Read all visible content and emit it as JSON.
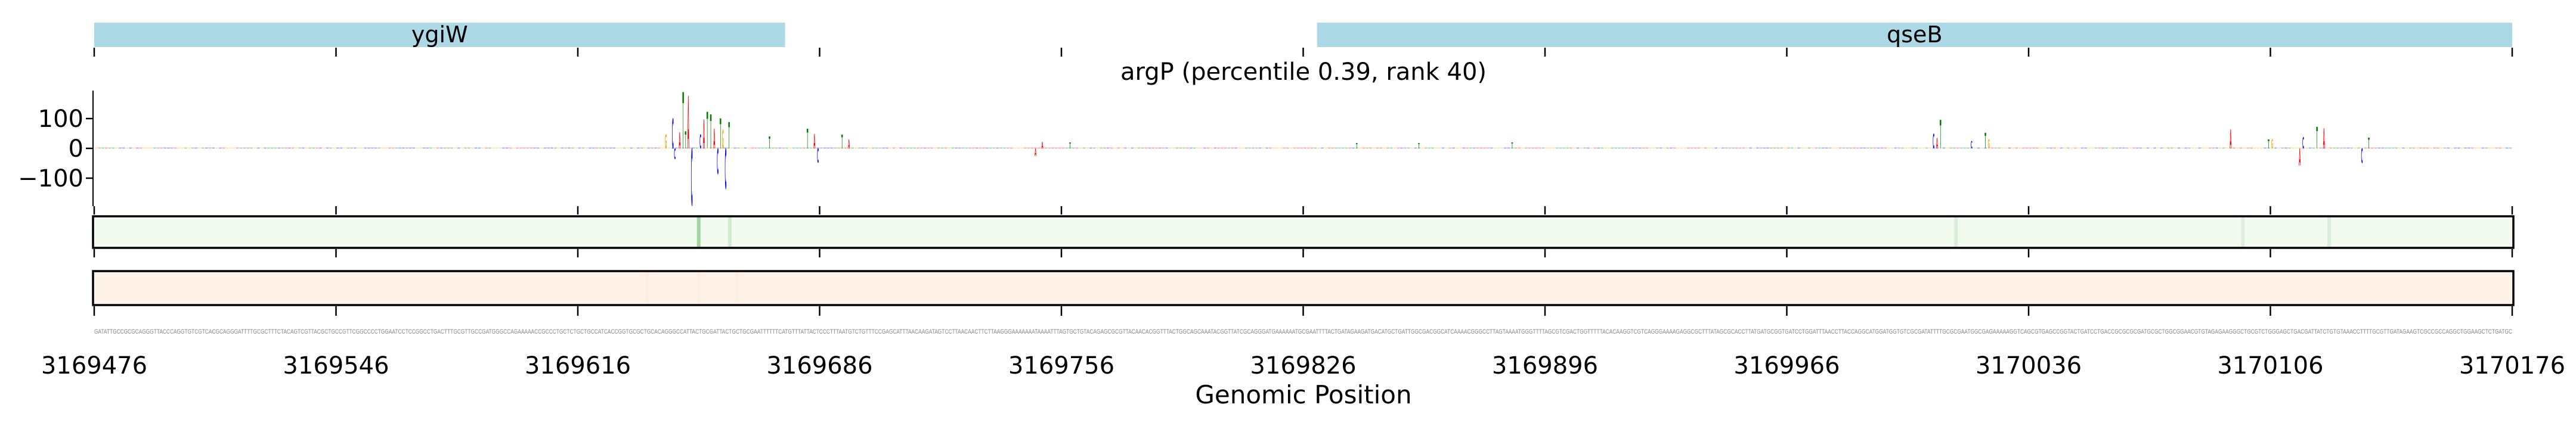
{
  "chart_data": {
    "type": "sequence-logo",
    "title": "argP (percentile 0.39, rank 40)",
    "xlabel": "Genomic Position",
    "xlim": [
      3169476,
      3170176
    ],
    "x_ticks": [
      3169476,
      3169546,
      3169616,
      3169686,
      3169756,
      3169826,
      3169896,
      3169966,
      3170036,
      3170106,
      3170176
    ],
    "y_ticks": [
      100,
      0,
      -100
    ],
    "y_tick_labels": [
      "100",
      "0",
      "−100"
    ],
    "ylim": [
      -200,
      200
    ],
    "genes": [
      {
        "name": "ygiW",
        "start": 3169476,
        "end": 3169676
      },
      {
        "name": "qseB",
        "start": 3169830,
        "end": 3170176
      }
    ],
    "base_colors": {
      "A": "#ff0000",
      "C": "#0000ff",
      "G": "#ffa500",
      "T": "#008000"
    },
    "peaks": [
      {
        "offset": 165,
        "base": "G",
        "value": 47
      },
      {
        "offset": 167,
        "base": "C",
        "value": 100
      },
      {
        "offset": 167.6,
        "base": "C",
        "value": -36
      },
      {
        "offset": 169,
        "base": "A",
        "value": 55
      },
      {
        "offset": 170,
        "base": "T",
        "value": 189
      },
      {
        "offset": 170.7,
        "base": "T",
        "value": 57
      },
      {
        "offset": 171.5,
        "base": "A",
        "value": 176
      },
      {
        "offset": 172.5,
        "base": "C",
        "value": -191
      },
      {
        "offset": 175,
        "base": "C",
        "value": 47
      },
      {
        "offset": 176,
        "base": "A",
        "value": 96
      },
      {
        "offset": 177,
        "base": "T",
        "value": 123
      },
      {
        "offset": 178,
        "base": "T",
        "value": 115
      },
      {
        "offset": 179,
        "base": "A",
        "value": 66
      },
      {
        "offset": 180,
        "base": "C",
        "value": -86
      },
      {
        "offset": 180.8,
        "base": "T",
        "value": 100
      },
      {
        "offset": 181.5,
        "base": "G",
        "value": 62
      },
      {
        "offset": 182.3,
        "base": "C",
        "value": -135
      },
      {
        "offset": 183.3,
        "base": "T",
        "value": 89
      },
      {
        "offset": 195,
        "base": "T",
        "value": 40
      },
      {
        "offset": 206,
        "base": "T",
        "value": 66
      },
      {
        "offset": 208,
        "base": "A",
        "value": 48
      },
      {
        "offset": 209,
        "base": "C",
        "value": -48
      },
      {
        "offset": 216,
        "base": "T",
        "value": 45
      },
      {
        "offset": 218,
        "base": "A",
        "value": 30
      },
      {
        "offset": 272,
        "base": "A",
        "value": -25
      },
      {
        "offset": 274,
        "base": "A",
        "value": 22
      },
      {
        "offset": 282,
        "base": "T",
        "value": 20
      },
      {
        "offset": 365,
        "base": "T",
        "value": 18
      },
      {
        "offset": 383,
        "base": "T",
        "value": 18
      },
      {
        "offset": 410,
        "base": "T",
        "value": 20
      },
      {
        "offset": 532,
        "base": "C",
        "value": 49
      },
      {
        "offset": 533,
        "base": "A",
        "value": 35
      },
      {
        "offset": 534,
        "base": "T",
        "value": 95
      },
      {
        "offset": 543,
        "base": "C",
        "value": 25
      },
      {
        "offset": 547,
        "base": "T",
        "value": 52
      },
      {
        "offset": 548,
        "base": "G",
        "value": 30
      },
      {
        "offset": 618,
        "base": "A",
        "value": 64
      },
      {
        "offset": 629,
        "base": "T",
        "value": 30
      },
      {
        "offset": 630,
        "base": "G",
        "value": 30
      },
      {
        "offset": 638,
        "base": "A",
        "value": -57
      },
      {
        "offset": 639,
        "base": "C",
        "value": 38
      },
      {
        "offset": 643,
        "base": "T",
        "value": 72
      },
      {
        "offset": 645,
        "base": "A",
        "value": 67
      },
      {
        "offset": 656,
        "base": "C",
        "value": -49
      },
      {
        "offset": 658,
        "base": "T",
        "value": 36
      }
    ],
    "track_green": {
      "color": "#f3faf0",
      "lines": [
        {
          "offset": 175,
          "strength": 0.5
        },
        {
          "offset": 184,
          "strength": 0.2
        },
        {
          "offset": 539,
          "strength": 0.15
        },
        {
          "offset": 622,
          "strength": 0.12
        },
        {
          "offset": 647,
          "strength": 0.15
        }
      ]
    },
    "track_orange": {
      "color": "#fff3e9",
      "lines": [
        {
          "offset": 160,
          "strength": 0.05
        },
        {
          "offset": 175,
          "strength": 0.05
        },
        {
          "offset": 186,
          "strength": 0.05
        }
      ]
    },
    "sequence": "GATATTGCCGCGCAGGGTTACCCAGGTGTCGTCACGCAGGGATTTTGCGCTTTCTACAGTCGTTACGCTGCCGTTCGGCCCCTGGAATCCTCCGGCCTGACTTTGCGTTGCCGATGGGCCAGAAAAACCGCCCTGCTCTGCTGCCATCACCGGTGCGCTGCACAGGGCCATTACTGCGATTACTGCTGCGAATTTTTTCATGTTTATTACTCCCTTTAATGTCTGTTTCCGAGCATTTAACAAGATAGTCCTTAACAACTTCTTAAGGGAAAAAAATAAAATTTAGTGCTGTACAGAGCGCGTTACAACACGGTTTACTGGCAGCAAATACGGTTATCGCAGGGATGAAAAAATGCGAATTTTACTGATAGAAGATGACATGCTGATTGGCGACGGCATCAAAACGGGCCTTAGTAAAATGGGTTTTAGCGTCGACTGGTTTTTACACAAGGTCGTCAGGGAAAAGAGGCGCTTTATAGCGCACCTTATGATGCGGTGATCCTGGATTTAACCTTACCAGGCATGGATGGTGTCGCGATATTTTGCGCGAATGGCGAGAAAAAGGTCAGCGTGAGCCGGTACTGATCCTGACCGCGCGCGATGCGCTGGCGGAACGTGTAGAGAAGGGCTGCGTCTGGGAGCTGACGATTATCTGTGTAAACCTTTTGCGTTGATAGAAGTCGCCGCCAGGCTGGAAGCTCTGATGC"
  }
}
